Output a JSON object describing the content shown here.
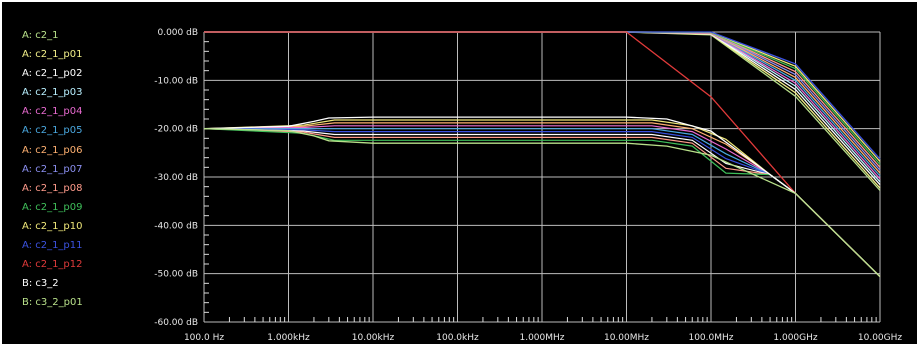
{
  "legend": [
    {
      "label": "A: c2_1",
      "color": "#b8e08a"
    },
    {
      "label": "A: c2_1_p01",
      "color": "#f3f08a"
    },
    {
      "label": "A: c2_1_p02",
      "color": "#ffffff"
    },
    {
      "label": "A: c2_1_p03",
      "color": "#b9f0ff"
    },
    {
      "label": "A: c2_1_p04",
      "color": "#e86ad0"
    },
    {
      "label": "A: c2_1_p05",
      "color": "#4aa8e0"
    },
    {
      "label": "A: c2_1_p06",
      "color": "#ffb070"
    },
    {
      "label": "A: c2_1_p07",
      "color": "#8b8ff0"
    },
    {
      "label": "A: c2_1_p08",
      "color": "#ff9b8b"
    },
    {
      "label": "A: c2_1_p09",
      "color": "#3fbf5a"
    },
    {
      "label": "A: c2_1_p10",
      "color": "#f0e87a"
    },
    {
      "label": "A: c2_1_p11",
      "color": "#3b52e0"
    },
    {
      "label": "A: c2_1_p12",
      "color": "#e03a3a"
    },
    {
      "label": "B: c3_2",
      "color": "#ffffff"
    },
    {
      "label": "B: c3_2_p01",
      "color": "#b8e08a"
    }
  ],
  "chart_data": {
    "type": "line",
    "xscale": "log",
    "xlim": [
      100,
      10000000000
    ],
    "ylim": [
      -60,
      0
    ],
    "grid": true,
    "background": "#000000",
    "x_ticks": [
      "100.0 Hz",
      "1.000kHz",
      "10.00kHz",
      "100.0kHz",
      "1.000MHz",
      "10.00MHz",
      "100.0MHz",
      "1.000GHz",
      "10.00GHz"
    ],
    "y_ticks": [
      "0.000 dB",
      "-10.00 dB",
      "-20.00 dB",
      "-30.00 dB",
      "-40.00 dB",
      "-50.00 dB",
      "-60.00 dB"
    ],
    "series": [
      {
        "name": "A: c2_1",
        "color": "#b8e08a",
        "x": [
          100,
          1000,
          10000,
          100000,
          1000000,
          10000000,
          100000000,
          1000000000,
          10000000000
        ],
        "y": [
          0,
          0,
          0,
          0,
          0,
          0,
          -0.6,
          -13.3,
          -32.8
        ]
      },
      {
        "name": "A: c2_1_p01",
        "color": "#f3f08a",
        "x": [
          100,
          1000,
          10000,
          100000,
          1000000,
          10000000,
          100000000,
          1000000000,
          10000000000
        ],
        "y": [
          0,
          0,
          0,
          0,
          0,
          0,
          -0.5,
          -12.6,
          -32.3
        ]
      },
      {
        "name": "A: c2_1_p02",
        "color": "#ffffff",
        "x": [
          100,
          1000,
          10000,
          100000,
          1000000,
          10000000,
          100000000,
          1000000000,
          10000000000
        ],
        "y": [
          0,
          0,
          0,
          0,
          0,
          0,
          -0.4,
          -11.9,
          -31.6
        ]
      },
      {
        "name": "A: c2_1_p03",
        "color": "#b9f0ff",
        "x": [
          100,
          1000,
          10000,
          100000,
          1000000,
          10000000,
          100000000,
          1000000000,
          10000000000
        ],
        "y": [
          0,
          0,
          0,
          0,
          0,
          0,
          -0.3,
          -11.2,
          -31.0
        ]
      },
      {
        "name": "A: c2_1_p04",
        "color": "#e86ad0",
        "x": [
          100,
          1000,
          10000,
          100000,
          1000000,
          10000000,
          100000000,
          1000000000,
          10000000000
        ],
        "y": [
          0,
          0,
          0,
          0,
          0,
          0,
          -0.3,
          -10.6,
          -30.4
        ]
      },
      {
        "name": "A: c2_1_p05",
        "color": "#4aa8e0",
        "x": [
          100,
          1000,
          10000,
          100000,
          1000000,
          10000000,
          100000000,
          1000000000,
          10000000000
        ],
        "y": [
          0,
          0,
          0,
          0,
          0,
          0,
          -0.2,
          -10.0,
          -29.8
        ]
      },
      {
        "name": "A: c2_1_p06",
        "color": "#ffb070",
        "x": [
          100,
          1000,
          10000,
          100000,
          1000000,
          10000000,
          100000000,
          1000000000,
          10000000000
        ],
        "y": [
          0,
          0,
          0,
          0,
          0,
          0,
          -0.2,
          -9.4,
          -29.2
        ]
      },
      {
        "name": "A: c2_1_p07",
        "color": "#8b8ff0",
        "x": [
          100,
          1000,
          10000,
          100000,
          1000000,
          10000000,
          100000000,
          1000000000,
          10000000000
        ],
        "y": [
          0,
          0,
          0,
          0,
          0,
          0,
          -0.1,
          -8.8,
          -28.6
        ]
      },
      {
        "name": "A: c2_1_p08",
        "color": "#ff9b8b",
        "x": [
          100,
          1000,
          10000,
          100000,
          1000000,
          10000000,
          100000000,
          1000000000,
          10000000000
        ],
        "y": [
          0,
          0,
          0,
          0,
          0,
          0,
          -0.1,
          -8.2,
          -28.0
        ]
      },
      {
        "name": "A: c2_1_p09",
        "color": "#3fbf5a",
        "x": [
          100,
          1000,
          10000,
          100000,
          1000000,
          10000000,
          100000000,
          1000000000,
          10000000000
        ],
        "y": [
          0,
          0,
          0,
          0,
          0,
          0,
          -0.1,
          -7.6,
          -27.4
        ]
      },
      {
        "name": "A: c2_1_p10",
        "color": "#f0e87a",
        "x": [
          100,
          1000,
          10000,
          100000,
          1000000,
          10000000,
          100000000,
          1000000000,
          10000000000
        ],
        "y": [
          0,
          0,
          0,
          0,
          0,
          0,
          -0.05,
          -7.1,
          -26.8
        ]
      },
      {
        "name": "A: c2_1_p11",
        "color": "#3b52e0",
        "x": [
          100,
          1000,
          10000,
          100000,
          1000000,
          10000000,
          100000000,
          1000000000,
          10000000000
        ],
        "y": [
          0,
          0,
          0,
          0,
          0,
          0,
          0,
          -6.6,
          -26.3
        ]
      },
      {
        "name": "A: c2_1_p12",
        "color": "#e03a3a",
        "x": [
          100,
          1000,
          10000,
          100000,
          1000000,
          10000000,
          100000000,
          1000000000,
          10000000000
        ],
        "y": [
          0,
          0,
          0,
          0,
          0,
          0,
          -13.4,
          -33.4,
          -50.6
        ]
      },
      {
        "name": "B: c3_2",
        "color": "#ffffff",
        "x": [
          100,
          1000,
          2000,
          3000,
          10000,
          100000,
          1000000,
          10000000,
          30000000,
          100000000,
          1000000000,
          10000000000
        ],
        "y": [
          -20,
          -19.5,
          -18.5,
          -17.8,
          -17.6,
          -17.6,
          -17.6,
          -17.6,
          -18.0,
          -20.5,
          -33.4,
          -50.6
        ]
      },
      {
        "name": "B: c3_2_p01",
        "color": "#b8e08a",
        "x": [
          100,
          1000,
          2000,
          3000,
          10000,
          100000,
          1000000,
          10000000,
          30000000,
          100000000,
          1000000000,
          10000000000
        ],
        "y": [
          -20,
          -20.4,
          -21.5,
          -22.5,
          -23.0,
          -23.0,
          -23.0,
          -23.0,
          -23.6,
          -25.5,
          -33.4,
          -50.6
        ]
      }
    ],
    "band": {
      "name_note": "",
      "colors": [
        "#f0e87a",
        "#ffb070",
        "#e86ad0",
        "#4aa8e0",
        "#3b52e0",
        "#ffffff",
        "#ff9b8b",
        "#3fbf5a",
        "#8b8ff0"
      ],
      "levels": [
        -18.2,
        -18.8,
        -19.4,
        -20.0,
        -20.6,
        -21.2,
        -21.8,
        -22.4
      ]
    }
  }
}
